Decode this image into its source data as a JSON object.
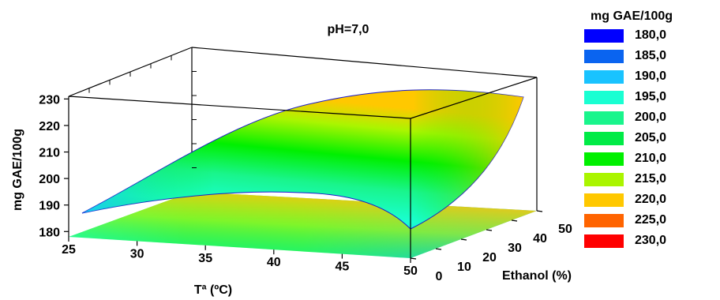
{
  "chart_data": {
    "type": "surface3d",
    "title": "pH=7,0",
    "xlabel": "Tª (ºC)",
    "ylabel": "Ethanol (%)",
    "zlabel": "mg GAE/100g",
    "x_ticks": [
      "25",
      "30",
      "35",
      "40",
      "45",
      "50"
    ],
    "y_ticks": [
      "0",
      "10",
      "20",
      "30",
      "40",
      "50"
    ],
    "z_ticks": [
      "180",
      "190",
      "200",
      "210",
      "220",
      "230"
    ],
    "xlim": [
      25,
      50
    ],
    "ylim": [
      0,
      50
    ],
    "zlim": [
      178,
      231
    ],
    "surface": {
      "x": [
        25,
        50
      ],
      "y": [
        0,
        50
      ],
      "front_edge_z_at_x": [
        [
          25,
          188
        ],
        [
          30,
          195
        ],
        [
          35,
          199
        ],
        [
          40,
          201
        ],
        [
          45,
          201
        ],
        [
          50,
          202
        ]
      ],
      "back_edge_z_at_x": [
        [
          25,
          224
        ],
        [
          30,
          227
        ],
        [
          35,
          229
        ],
        [
          40,
          228
        ],
        [
          45,
          227
        ],
        [
          50,
          226
        ]
      ],
      "min_z": 188,
      "max_z": 231
    },
    "contour_projection": "floor",
    "legend": {
      "title": "mg GAE/100g",
      "placement": "right",
      "items": [
        {
          "label": "180,0",
          "color": "#0000ff"
        },
        {
          "label": "185,0",
          "color": "#0a64f0"
        },
        {
          "label": "190,0",
          "color": "#19c3ff"
        },
        {
          "label": "195,0",
          "color": "#19ffd2"
        },
        {
          "label": "200,0",
          "color": "#19f58c"
        },
        {
          "label": "205,0",
          "color": "#00eb46"
        },
        {
          "label": "210,0",
          "color": "#00f000"
        },
        {
          "label": "215,0",
          "color": "#aaf500"
        },
        {
          "label": "220,0",
          "color": "#ffc800"
        },
        {
          "label": "225,0",
          "color": "#ff6400"
        },
        {
          "label": "230,0",
          "color": "#ff0000"
        }
      ]
    }
  }
}
